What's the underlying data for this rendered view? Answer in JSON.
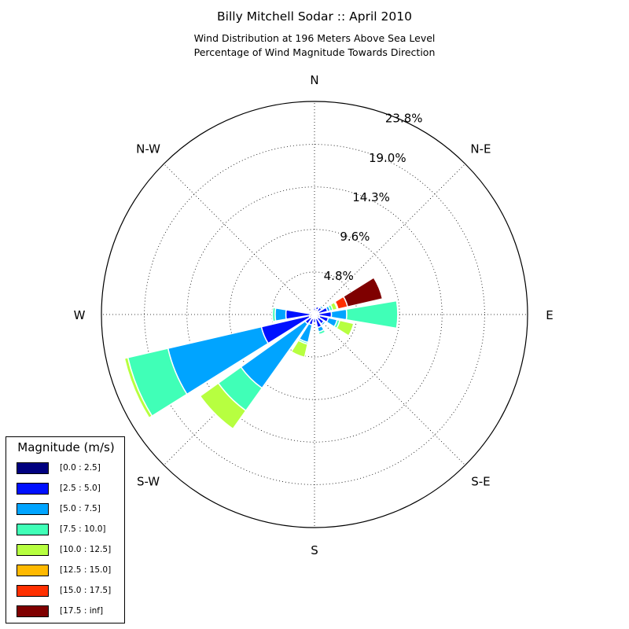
{
  "title": "Billy Mitchell Sodar :: April 2010",
  "subtitle_lines": [
    "Wind Distribution at 196 Meters Above Sea Level",
    "Percentage of Wind Magnitude Towards Direction"
  ],
  "legend": {
    "title": "Magnitude (m/s)"
  },
  "chart_data": {
    "type": "windrose",
    "directions": [
      {
        "label": "N",
        "angle": 0
      },
      {
        "label": "N-E",
        "angle": 45
      },
      {
        "label": "E",
        "angle": 90
      },
      {
        "label": "S-E",
        "angle": 135
      },
      {
        "label": "S",
        "angle": 180
      },
      {
        "label": "S-W",
        "angle": 225
      },
      {
        "label": "W",
        "angle": 270
      },
      {
        "label": "N-W",
        "angle": 315
      }
    ],
    "radial_ticks": [
      "4.8%",
      "9.6%",
      "14.3%",
      "19.0%",
      "23.8%"
    ],
    "radial_tick_values": [
      4.75,
      9.5,
      14.25,
      19.0,
      23.8
    ],
    "rmax": 23.8,
    "bins": [
      {
        "label": "[0.0 : 2.5]",
        "color": "#00007f"
      },
      {
        "label": "[2.5 : 5.0]",
        "color": "#0010ff"
      },
      {
        "label": "[5.0 : 7.5]",
        "color": "#00a4ff"
      },
      {
        "label": "[7.5 : 10.0]",
        "color": "#40ffb7"
      },
      {
        "label": "[10.0 : 12.5]",
        "color": "#b7ff40"
      },
      {
        "label": "[12.5 : 15.0]",
        "color": "#ffb900"
      },
      {
        "label": "[15.0 : 17.5]",
        "color": "#ff3000"
      },
      {
        "label": "[17.5 : inf]",
        "color": "#7f0000"
      }
    ],
    "sectors": [
      {
        "dir": 0,
        "values": [
          0.4,
          0.3,
          0,
          0,
          0,
          0,
          0,
          0
        ]
      },
      {
        "dir": 22.5,
        "values": [
          0.6,
          0.3,
          0,
          0,
          0,
          0,
          0,
          0
        ]
      },
      {
        "dir": 45,
        "values": [
          0.5,
          0.5,
          0.2,
          0,
          0,
          0,
          0,
          0
        ]
      },
      {
        "dir": 67.5,
        "values": [
          0.5,
          1.0,
          0.3,
          0.3,
          0.5,
          0.1,
          1.1,
          4.0
        ]
      },
      {
        "dir": 90,
        "values": [
          0.5,
          1.4,
          1.7,
          5.7,
          0,
          0,
          0,
          0
        ]
      },
      {
        "dir": 112.5,
        "values": [
          0.6,
          1.0,
          1.0,
          0.3,
          1.6,
          0.1,
          0,
          0
        ]
      },
      {
        "dir": 135,
        "values": [
          0.5,
          0.8,
          0.2,
          0,
          0,
          0,
          0,
          0
        ]
      },
      {
        "dir": 157.5,
        "values": [
          0.5,
          1.0,
          0.5,
          0.3,
          0,
          0,
          0,
          0
        ]
      },
      {
        "dir": 180,
        "values": [
          0.4,
          0.5,
          0,
          0,
          0,
          0,
          0,
          0
        ]
      },
      {
        "dir": 202.5,
        "values": [
          0.5,
          0.7,
          2.0,
          0.2,
          1.5,
          0,
          0,
          0
        ]
      },
      {
        "dir": 225,
        "values": [
          0.5,
          0.8,
          8.8,
          3.1,
          2.5,
          0.1,
          0,
          0
        ]
      },
      {
        "dir": 247.5,
        "values": [
          0.6,
          5.5,
          10.7,
          4.6,
          0.4,
          0.1,
          0,
          0
        ]
      },
      {
        "dir": 270,
        "values": [
          0.5,
          2.7,
          1.2,
          0.3,
          0,
          0,
          0,
          0
        ]
      },
      {
        "dir": 292.5,
        "values": [
          0.4,
          0.2,
          0,
          0,
          0,
          0,
          0,
          0
        ]
      },
      {
        "dir": 315,
        "values": [
          0.3,
          0.2,
          0,
          0,
          0,
          0,
          0,
          0
        ]
      },
      {
        "dir": 337.5,
        "values": [
          0.2,
          0.3,
          0,
          0,
          0,
          0,
          0,
          0
        ]
      }
    ]
  }
}
